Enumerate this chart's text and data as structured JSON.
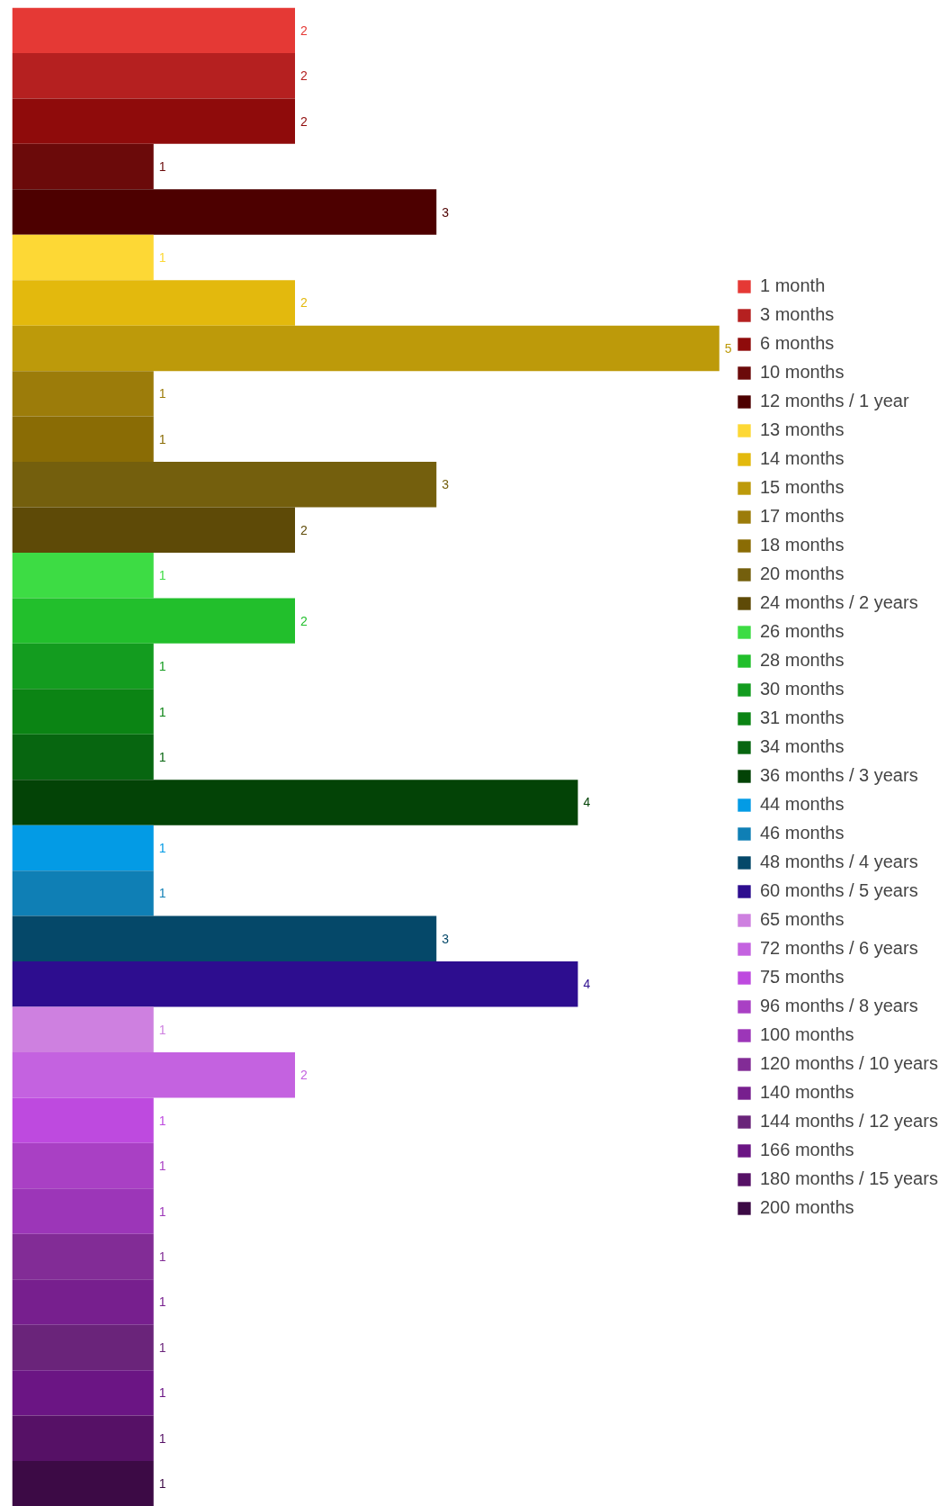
{
  "chart_data": {
    "type": "bar",
    "orientation": "horizontal",
    "categories": [
      null,
      null,
      null,
      null,
      null,
      null,
      null,
      null,
      null,
      null,
      null,
      null,
      null,
      null,
      null,
      null,
      null,
      null,
      null,
      null,
      null,
      null,
      null,
      null,
      null,
      null,
      null,
      null,
      null,
      null,
      null,
      null,
      null
    ],
    "series": [
      {
        "name": "1 month",
        "color": "#e53935",
        "values": [
          2,
          null,
          null,
          null,
          null,
          null,
          null,
          null,
          null,
          null,
          null,
          null,
          null,
          null,
          null,
          null,
          null,
          null,
          null,
          null,
          null,
          null,
          null,
          null,
          null,
          null,
          null,
          null,
          null,
          null,
          null,
          null,
          null
        ]
      },
      {
        "name": "3 months",
        "color": "#b52020",
        "values": [
          null,
          2,
          null,
          null,
          null,
          null,
          null,
          null,
          null,
          null,
          null,
          null,
          null,
          null,
          null,
          null,
          null,
          null,
          null,
          null,
          null,
          null,
          null,
          null,
          null,
          null,
          null,
          null,
          null,
          null,
          null,
          null,
          null
        ]
      },
      {
        "name": "6 months",
        "color": "#8f0b0b",
        "values": [
          null,
          null,
          2,
          null,
          null,
          null,
          null,
          null,
          null,
          null,
          null,
          null,
          null,
          null,
          null,
          null,
          null,
          null,
          null,
          null,
          null,
          null,
          null,
          null,
          null,
          null,
          null,
          null,
          null,
          null,
          null,
          null,
          null
        ]
      },
      {
        "name": "10 months",
        "color": "#6b0a0a",
        "values": [
          null,
          null,
          null,
          1,
          null,
          null,
          null,
          null,
          null,
          null,
          null,
          null,
          null,
          null,
          null,
          null,
          null,
          null,
          null,
          null,
          null,
          null,
          null,
          null,
          null,
          null,
          null,
          null,
          null,
          null,
          null,
          null,
          null
        ]
      },
      {
        "name": "12 months / 1 year",
        "color": "#4d0000",
        "values": [
          null,
          null,
          null,
          null,
          3,
          null,
          null,
          null,
          null,
          null,
          null,
          null,
          null,
          null,
          null,
          null,
          null,
          null,
          null,
          null,
          null,
          null,
          null,
          null,
          null,
          null,
          null,
          null,
          null,
          null,
          null,
          null,
          null
        ]
      },
      {
        "name": "13 months",
        "color": "#fdd835",
        "values": [
          null,
          null,
          null,
          null,
          null,
          1,
          null,
          null,
          null,
          null,
          null,
          null,
          null,
          null,
          null,
          null,
          null,
          null,
          null,
          null,
          null,
          null,
          null,
          null,
          null,
          null,
          null,
          null,
          null,
          null,
          null,
          null,
          null
        ]
      },
      {
        "name": "14 months",
        "color": "#e3b90d",
        "values": [
          null,
          null,
          null,
          null,
          null,
          null,
          2,
          null,
          null,
          null,
          null,
          null,
          null,
          null,
          null,
          null,
          null,
          null,
          null,
          null,
          null,
          null,
          null,
          null,
          null,
          null,
          null,
          null,
          null,
          null,
          null,
          null,
          null
        ]
      },
      {
        "name": "15 months",
        "color": "#bd9a0a",
        "values": [
          null,
          null,
          null,
          null,
          null,
          null,
          null,
          5,
          null,
          null,
          null,
          null,
          null,
          null,
          null,
          null,
          null,
          null,
          null,
          null,
          null,
          null,
          null,
          null,
          null,
          null,
          null,
          null,
          null,
          null,
          null,
          null,
          null
        ]
      },
      {
        "name": "17 months",
        "color": "#9c7c0a",
        "values": [
          null,
          null,
          null,
          null,
          null,
          null,
          null,
          null,
          1,
          null,
          null,
          null,
          null,
          null,
          null,
          null,
          null,
          null,
          null,
          null,
          null,
          null,
          null,
          null,
          null,
          null,
          null,
          null,
          null,
          null,
          null,
          null,
          null
        ]
      },
      {
        "name": "18 months",
        "color": "#8a6c05",
        "values": [
          null,
          null,
          null,
          null,
          null,
          null,
          null,
          null,
          null,
          1,
          null,
          null,
          null,
          null,
          null,
          null,
          null,
          null,
          null,
          null,
          null,
          null,
          null,
          null,
          null,
          null,
          null,
          null,
          null,
          null,
          null,
          null,
          null
        ]
      },
      {
        "name": "20 months",
        "color": "#745f0d",
        "values": [
          null,
          null,
          null,
          null,
          null,
          null,
          null,
          null,
          null,
          null,
          3,
          null,
          null,
          null,
          null,
          null,
          null,
          null,
          null,
          null,
          null,
          null,
          null,
          null,
          null,
          null,
          null,
          null,
          null,
          null,
          null,
          null,
          null
        ]
      },
      {
        "name": "24 months / 2 years",
        "color": "#5e4a07",
        "values": [
          null,
          null,
          null,
          null,
          null,
          null,
          null,
          null,
          null,
          null,
          null,
          2,
          null,
          null,
          null,
          null,
          null,
          null,
          null,
          null,
          null,
          null,
          null,
          null,
          null,
          null,
          null,
          null,
          null,
          null,
          null,
          null,
          null
        ]
      },
      {
        "name": "26 months",
        "color": "#3ddc44",
        "values": [
          null,
          null,
          null,
          null,
          null,
          null,
          null,
          null,
          null,
          null,
          null,
          null,
          1,
          null,
          null,
          null,
          null,
          null,
          null,
          null,
          null,
          null,
          null,
          null,
          null,
          null,
          null,
          null,
          null,
          null,
          null,
          null,
          null
        ]
      },
      {
        "name": "28 months",
        "color": "#22bf2c",
        "values": [
          null,
          null,
          null,
          null,
          null,
          null,
          null,
          null,
          null,
          null,
          null,
          null,
          null,
          2,
          null,
          null,
          null,
          null,
          null,
          null,
          null,
          null,
          null,
          null,
          null,
          null,
          null,
          null,
          null,
          null,
          null,
          null,
          null
        ]
      },
      {
        "name": "30 months",
        "color": "#139c1f",
        "values": [
          null,
          null,
          null,
          null,
          null,
          null,
          null,
          null,
          null,
          null,
          null,
          null,
          null,
          null,
          1,
          null,
          null,
          null,
          null,
          null,
          null,
          null,
          null,
          null,
          null,
          null,
          null,
          null,
          null,
          null,
          null,
          null,
          null
        ]
      },
      {
        "name": "31 months",
        "color": "#0b8414",
        "values": [
          null,
          null,
          null,
          null,
          null,
          null,
          null,
          null,
          null,
          null,
          null,
          null,
          null,
          null,
          null,
          1,
          null,
          null,
          null,
          null,
          null,
          null,
          null,
          null,
          null,
          null,
          null,
          null,
          null,
          null,
          null,
          null,
          null
        ]
      },
      {
        "name": "34 months",
        "color": "#076610",
        "values": [
          null,
          null,
          null,
          null,
          null,
          null,
          null,
          null,
          null,
          null,
          null,
          null,
          null,
          null,
          null,
          null,
          1,
          null,
          null,
          null,
          null,
          null,
          null,
          null,
          null,
          null,
          null,
          null,
          null,
          null,
          null,
          null,
          null
        ]
      },
      {
        "name": "36 months / 3 years",
        "color": "#034306",
        "values": [
          null,
          null,
          null,
          null,
          null,
          null,
          null,
          null,
          null,
          null,
          null,
          null,
          null,
          null,
          null,
          null,
          null,
          4,
          null,
          null,
          null,
          null,
          null,
          null,
          null,
          null,
          null,
          null,
          null,
          null,
          null,
          null,
          null
        ]
      },
      {
        "name": "44 months",
        "color": "#039be5",
        "values": [
          null,
          null,
          null,
          null,
          null,
          null,
          null,
          null,
          null,
          null,
          null,
          null,
          null,
          null,
          null,
          null,
          null,
          null,
          1,
          null,
          null,
          null,
          null,
          null,
          null,
          null,
          null,
          null,
          null,
          null,
          null,
          null,
          null
        ]
      },
      {
        "name": "46 months",
        "color": "#0f7fb5",
        "values": [
          null,
          null,
          null,
          null,
          null,
          null,
          null,
          null,
          null,
          null,
          null,
          null,
          null,
          null,
          null,
          null,
          null,
          null,
          null,
          1,
          null,
          null,
          null,
          null,
          null,
          null,
          null,
          null,
          null,
          null,
          null,
          null,
          null
        ]
      },
      {
        "name": "48 months / 4 years",
        "color": "#054869",
        "values": [
          null,
          null,
          null,
          null,
          null,
          null,
          null,
          null,
          null,
          null,
          null,
          null,
          null,
          null,
          null,
          null,
          null,
          null,
          null,
          null,
          3,
          null,
          null,
          null,
          null,
          null,
          null,
          null,
          null,
          null,
          null,
          null,
          null
        ]
      },
      {
        "name": "60 months / 5 years",
        "color": "#2d0d8f",
        "values": [
          null,
          null,
          null,
          null,
          null,
          null,
          null,
          null,
          null,
          null,
          null,
          null,
          null,
          null,
          null,
          null,
          null,
          null,
          null,
          null,
          null,
          4,
          null,
          null,
          null,
          null,
          null,
          null,
          null,
          null,
          null,
          null,
          null
        ]
      },
      {
        "name": "65 months",
        "color": "#ce80e0",
        "values": [
          null,
          null,
          null,
          null,
          null,
          null,
          null,
          null,
          null,
          null,
          null,
          null,
          null,
          null,
          null,
          null,
          null,
          null,
          null,
          null,
          null,
          null,
          1,
          null,
          null,
          null,
          null,
          null,
          null,
          null,
          null,
          null,
          null
        ]
      },
      {
        "name": "72 months / 6 years",
        "color": "#c462e0",
        "values": [
          null,
          null,
          null,
          null,
          null,
          null,
          null,
          null,
          null,
          null,
          null,
          null,
          null,
          null,
          null,
          null,
          null,
          null,
          null,
          null,
          null,
          null,
          null,
          2,
          null,
          null,
          null,
          null,
          null,
          null,
          null,
          null,
          null
        ]
      },
      {
        "name": "75 months",
        "color": "#be4adf",
        "values": [
          null,
          null,
          null,
          null,
          null,
          null,
          null,
          null,
          null,
          null,
          null,
          null,
          null,
          null,
          null,
          null,
          null,
          null,
          null,
          null,
          null,
          null,
          null,
          null,
          1,
          null,
          null,
          null,
          null,
          null,
          null,
          null,
          null
        ]
      },
      {
        "name": "96 months / 8 years",
        "color": "#a940c4",
        "values": [
          null,
          null,
          null,
          null,
          null,
          null,
          null,
          null,
          null,
          null,
          null,
          null,
          null,
          null,
          null,
          null,
          null,
          null,
          null,
          null,
          null,
          null,
          null,
          null,
          null,
          1,
          null,
          null,
          null,
          null,
          null,
          null,
          null
        ]
      },
      {
        "name": "100 months",
        "color": "#9c36b8",
        "values": [
          null,
          null,
          null,
          null,
          null,
          null,
          null,
          null,
          null,
          null,
          null,
          null,
          null,
          null,
          null,
          null,
          null,
          null,
          null,
          null,
          null,
          null,
          null,
          null,
          null,
          null,
          1,
          null,
          null,
          null,
          null,
          null,
          null
        ]
      },
      {
        "name": "120 months / 10 years",
        "color": "#822c96",
        "values": [
          null,
          null,
          null,
          null,
          null,
          null,
          null,
          null,
          null,
          null,
          null,
          null,
          null,
          null,
          null,
          null,
          null,
          null,
          null,
          null,
          null,
          null,
          null,
          null,
          null,
          null,
          null,
          1,
          null,
          null,
          null,
          null,
          null
        ]
      },
      {
        "name": "140 months",
        "color": "#771f8e",
        "values": [
          null,
          null,
          null,
          null,
          null,
          null,
          null,
          null,
          null,
          null,
          null,
          null,
          null,
          null,
          null,
          null,
          null,
          null,
          null,
          null,
          null,
          null,
          null,
          null,
          null,
          null,
          null,
          null,
          1,
          null,
          null,
          null,
          null
        ]
      },
      {
        "name": "144 months / 12 years",
        "color": "#6a247a",
        "values": [
          null,
          null,
          null,
          null,
          null,
          null,
          null,
          null,
          null,
          null,
          null,
          null,
          null,
          null,
          null,
          null,
          null,
          null,
          null,
          null,
          null,
          null,
          null,
          null,
          null,
          null,
          null,
          null,
          null,
          1,
          null,
          null,
          null
        ]
      },
      {
        "name": "166 months",
        "color": "#6b1584",
        "values": [
          null,
          null,
          null,
          null,
          null,
          null,
          null,
          null,
          null,
          null,
          null,
          null,
          null,
          null,
          null,
          null,
          null,
          null,
          null,
          null,
          null,
          null,
          null,
          null,
          null,
          null,
          null,
          null,
          null,
          null,
          1,
          null,
          null
        ]
      },
      {
        "name": "180 months / 15 years",
        "color": "#561166",
        "values": [
          null,
          null,
          null,
          null,
          null,
          null,
          null,
          null,
          null,
          null,
          null,
          null,
          null,
          null,
          null,
          null,
          null,
          null,
          null,
          null,
          null,
          null,
          null,
          null,
          null,
          null,
          null,
          null,
          null,
          null,
          null,
          1,
          null
        ]
      },
      {
        "name": "200 months",
        "color": "#3c0a45",
        "values": [
          null,
          null,
          null,
          null,
          null,
          null,
          null,
          null,
          null,
          null,
          null,
          null,
          null,
          null,
          null,
          null,
          null,
          null,
          null,
          null,
          null,
          null,
          null,
          null,
          null,
          null,
          null,
          null,
          null,
          null,
          null,
          null,
          1
        ]
      }
    ],
    "stacked": true,
    "data_labels": true,
    "tick_labels": false,
    "legend": "right",
    "grid": false
  }
}
